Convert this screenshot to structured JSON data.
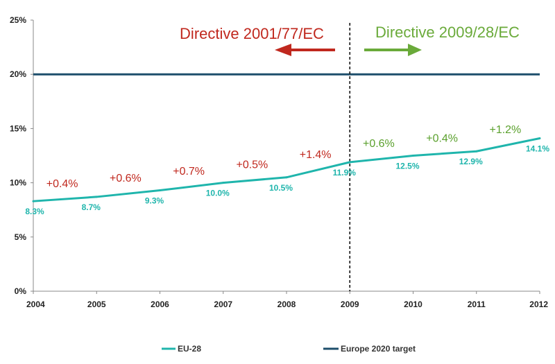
{
  "chart_data": {
    "type": "line",
    "x": [
      "2004",
      "2005",
      "2006",
      "2007",
      "2008",
      "2009",
      "2010",
      "2011",
      "2012"
    ],
    "y_ticks": [
      "0%",
      "5%",
      "10%",
      "15%",
      "20%",
      "25%"
    ],
    "ylim": [
      0,
      25
    ],
    "series": [
      {
        "name": "EU-28",
        "values": [
          8.3,
          8.7,
          9.3,
          10.0,
          10.5,
          11.9,
          12.5,
          12.9,
          14.1
        ],
        "labels": [
          "8.3%",
          "8.7%",
          "9.3%",
          "10.0%",
          "10.5%",
          "11.9%",
          "12.5%",
          "12.9%",
          "14.1%"
        ],
        "color": "#1fb5ac"
      },
      {
        "name": "Europe 2020 target",
        "values": [
          20,
          20,
          20,
          20,
          20,
          20,
          20,
          20,
          20
        ],
        "color": "#1d4e6b"
      }
    ],
    "growth_labels": [
      {
        "text": "+0.4%",
        "color": "#c0281e"
      },
      {
        "text": "+0.6%",
        "color": "#c0281e"
      },
      {
        "text": "+0.7%",
        "color": "#c0281e"
      },
      {
        "text": "+0.5%",
        "color": "#c0281e"
      },
      {
        "text": "+1.4%",
        "color": "#c0281e"
      },
      {
        "text": "+0.6%",
        "color": "#5aa02c"
      },
      {
        "text": "+0.4%",
        "color": "#5aa02c"
      },
      {
        "text": "+1.2%",
        "color": "#5aa02c"
      }
    ],
    "annotations": {
      "divider_at": "2009",
      "left_directive": {
        "text": "Directive 2001/77/EC",
        "color": "#c0281e"
      },
      "right_directive": {
        "text": "Directive 2009/28/EC",
        "color": "#6aaa3a"
      }
    },
    "legend_position": "bottom",
    "grid": false
  }
}
